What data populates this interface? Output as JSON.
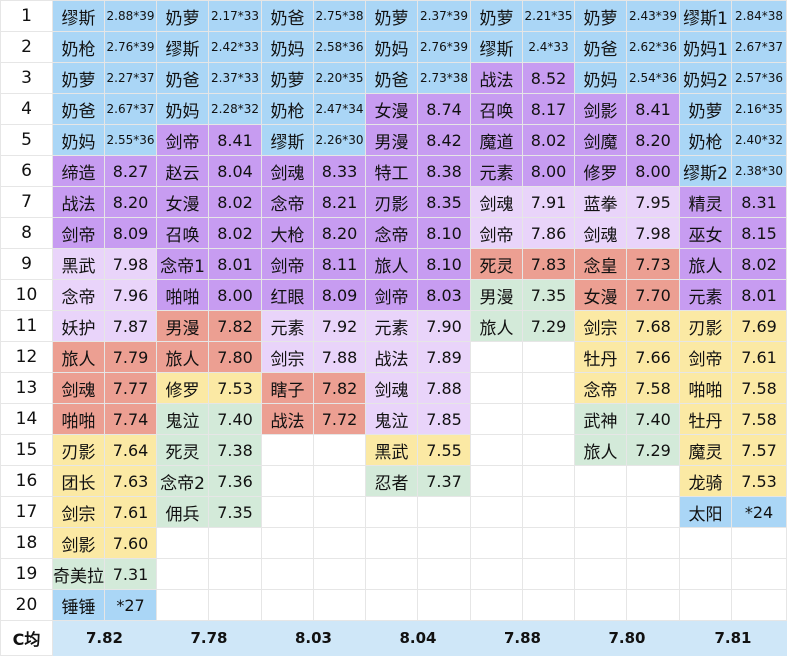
{
  "columns": 7,
  "rows": [
    {
      "num": "1",
      "cells": [
        {
          "name": "缪斯",
          "value": "2.88*39",
          "color": "blue"
        },
        {
          "name": "奶萝",
          "value": "2.17*33",
          "color": "blue"
        },
        {
          "name": "奶爸",
          "value": "2.75*38",
          "color": "blue"
        },
        {
          "name": "奶萝",
          "value": "2.37*39",
          "color": "blue"
        },
        {
          "name": "奶萝",
          "value": "2.21*35",
          "color": "blue"
        },
        {
          "name": "奶萝",
          "value": "2.43*39",
          "color": "blue"
        },
        {
          "name": "缪斯1",
          "value": "2.84*38",
          "color": "blue"
        }
      ]
    },
    {
      "num": "2",
      "cells": [
        {
          "name": "奶枪",
          "value": "2.76*39",
          "color": "blue"
        },
        {
          "name": "缪斯",
          "value": "2.42*33",
          "color": "blue"
        },
        {
          "name": "奶妈",
          "value": "2.58*36",
          "color": "blue"
        },
        {
          "name": "奶妈",
          "value": "2.76*39",
          "color": "blue"
        },
        {
          "name": "缪斯",
          "value": "2.4*33",
          "color": "blue"
        },
        {
          "name": "奶爸",
          "value": "2.62*36",
          "color": "blue"
        },
        {
          "name": "奶妈1",
          "value": "2.67*37",
          "color": "blue"
        }
      ]
    },
    {
      "num": "3",
      "cells": [
        {
          "name": "奶萝",
          "value": "2.27*37",
          "color": "blue"
        },
        {
          "name": "奶爸",
          "value": "2.37*33",
          "color": "blue"
        },
        {
          "name": "奶萝",
          "value": "2.20*35",
          "color": "blue"
        },
        {
          "name": "奶爸",
          "value": "2.73*38",
          "color": "blue"
        },
        {
          "name": "战法",
          "value": "8.52",
          "color": "purple"
        },
        {
          "name": "奶妈",
          "value": "2.54*36",
          "color": "blue"
        },
        {
          "name": "奶妈2",
          "value": "2.57*36",
          "color": "blue"
        }
      ]
    },
    {
      "num": "4",
      "cells": [
        {
          "name": "奶爸",
          "value": "2.67*37",
          "color": "blue"
        },
        {
          "name": "奶妈",
          "value": "2.28*32",
          "color": "blue"
        },
        {
          "name": "奶枪",
          "value": "2.47*34",
          "color": "blue"
        },
        {
          "name": "女漫",
          "value": "8.74",
          "color": "purple"
        },
        {
          "name": "召唤",
          "value": "8.17",
          "color": "purple"
        },
        {
          "name": "剑影",
          "value": "8.41",
          "color": "purple"
        },
        {
          "name": "奶萝",
          "value": "2.16*35",
          "color": "blue"
        }
      ]
    },
    {
      "num": "5",
      "cells": [
        {
          "name": "奶妈",
          "value": "2.55*36",
          "color": "blue"
        },
        {
          "name": "剑帝",
          "value": "8.41",
          "color": "purple"
        },
        {
          "name": "缪斯",
          "value": "2.26*30",
          "color": "blue"
        },
        {
          "name": "男漫",
          "value": "8.42",
          "color": "purple"
        },
        {
          "name": "魔道",
          "value": "8.02",
          "color": "purple"
        },
        {
          "name": "剑魔",
          "value": "8.20",
          "color": "purple"
        },
        {
          "name": "奶枪",
          "value": "2.40*32",
          "color": "blue"
        }
      ]
    },
    {
      "num": "6",
      "cells": [
        {
          "name": "缔造",
          "value": "8.27",
          "color": "purple"
        },
        {
          "name": "赵云",
          "value": "8.04",
          "color": "purple"
        },
        {
          "name": "剑魂",
          "value": "8.33",
          "color": "purple"
        },
        {
          "name": "特工",
          "value": "8.38",
          "color": "purple"
        },
        {
          "name": "元素",
          "value": "8.00",
          "color": "purple"
        },
        {
          "name": "修罗",
          "value": "8.00",
          "color": "purple"
        },
        {
          "name": "缪斯2",
          "value": "2.38*30",
          "color": "blue"
        }
      ]
    },
    {
      "num": "7",
      "cells": [
        {
          "name": "战法",
          "value": "8.20",
          "color": "purple"
        },
        {
          "name": "女漫",
          "value": "8.02",
          "color": "purple"
        },
        {
          "name": "念帝",
          "value": "8.21",
          "color": "purple"
        },
        {
          "name": "刃影",
          "value": "8.35",
          "color": "purple"
        },
        {
          "name": "剑魂",
          "value": "7.91",
          "color": "lav"
        },
        {
          "name": "蓝拳",
          "value": "7.95",
          "color": "lav"
        },
        {
          "name": "精灵",
          "value": "8.31",
          "color": "purple"
        }
      ]
    },
    {
      "num": "8",
      "cells": [
        {
          "name": "剑帝",
          "value": "8.09",
          "color": "purple"
        },
        {
          "name": "召唤",
          "value": "8.02",
          "color": "purple"
        },
        {
          "name": "大枪",
          "value": "8.20",
          "color": "purple"
        },
        {
          "name": "念帝",
          "value": "8.10",
          "color": "purple"
        },
        {
          "name": "剑帝",
          "value": "7.86",
          "color": "lav"
        },
        {
          "name": "剑魂",
          "value": "7.98",
          "color": "lav"
        },
        {
          "name": "巫女",
          "value": "8.15",
          "color": "purple"
        }
      ]
    },
    {
      "num": "9",
      "cells": [
        {
          "name": "黑武",
          "value": "7.98",
          "color": "lav"
        },
        {
          "name": "念帝1",
          "value": "8.01",
          "color": "purple"
        },
        {
          "name": "剑帝",
          "value": "8.11",
          "color": "purple"
        },
        {
          "name": "旅人",
          "value": "8.10",
          "color": "purple"
        },
        {
          "name": "死灵",
          "value": "7.83",
          "color": "red"
        },
        {
          "name": "念皇",
          "value": "7.73",
          "color": "red"
        },
        {
          "name": "旅人",
          "value": "8.02",
          "color": "purple"
        }
      ]
    },
    {
      "num": "10",
      "cells": [
        {
          "name": "念帝",
          "value": "7.96",
          "color": "lav"
        },
        {
          "name": "啪啪",
          "value": "8.00",
          "color": "purple"
        },
        {
          "name": "红眼",
          "value": "8.09",
          "color": "purple"
        },
        {
          "name": "剑帝",
          "value": "8.03",
          "color": "purple"
        },
        {
          "name": "男漫",
          "value": "7.35",
          "color": "green"
        },
        {
          "name": "女漫",
          "value": "7.70",
          "color": "red"
        },
        {
          "name": "元素",
          "value": "8.01",
          "color": "purple"
        }
      ]
    },
    {
      "num": "11",
      "cells": [
        {
          "name": "妖护",
          "value": "7.87",
          "color": "lav"
        },
        {
          "name": "男漫",
          "value": "7.82",
          "color": "red"
        },
        {
          "name": "元素",
          "value": "7.92",
          "color": "lav"
        },
        {
          "name": "元素",
          "value": "7.90",
          "color": "lav"
        },
        {
          "name": "旅人",
          "value": "7.29",
          "color": "green"
        },
        {
          "name": "剑宗",
          "value": "7.68",
          "color": "yellow"
        },
        {
          "name": "刃影",
          "value": "7.69",
          "color": "yellow"
        }
      ]
    },
    {
      "num": "12",
      "cells": [
        {
          "name": "旅人",
          "value": "7.79",
          "color": "red"
        },
        {
          "name": "旅人",
          "value": "7.80",
          "color": "red"
        },
        {
          "name": "剑宗",
          "value": "7.88",
          "color": "lav"
        },
        {
          "name": "战法",
          "value": "7.89",
          "color": "lav"
        },
        {
          "name": "",
          "value": "",
          "color": "none"
        },
        {
          "name": "牡丹",
          "value": "7.66",
          "color": "yellow"
        },
        {
          "name": "剑帝",
          "value": "7.61",
          "color": "yellow"
        }
      ]
    },
    {
      "num": "13",
      "cells": [
        {
          "name": "剑魂",
          "value": "7.77",
          "color": "red"
        },
        {
          "name": "修罗",
          "value": "7.53",
          "color": "yellow"
        },
        {
          "name": "瞎子",
          "value": "7.82",
          "color": "red"
        },
        {
          "name": "剑魂",
          "value": "7.88",
          "color": "lav"
        },
        {
          "name": "",
          "value": "",
          "color": "none"
        },
        {
          "name": "念帝",
          "value": "7.58",
          "color": "yellow"
        },
        {
          "name": "啪啪",
          "value": "7.58",
          "color": "yellow"
        }
      ]
    },
    {
      "num": "14",
      "cells": [
        {
          "name": "啪啪",
          "value": "7.74",
          "color": "red"
        },
        {
          "name": "鬼泣",
          "value": "7.40",
          "color": "green"
        },
        {
          "name": "战法",
          "value": "7.72",
          "color": "red"
        },
        {
          "name": "鬼泣",
          "value": "7.85",
          "color": "lav"
        },
        {
          "name": "",
          "value": "",
          "color": "none"
        },
        {
          "name": "武神",
          "value": "7.40",
          "color": "green"
        },
        {
          "name": "牡丹",
          "value": "7.58",
          "color": "yellow"
        }
      ]
    },
    {
      "num": "15",
      "cells": [
        {
          "name": "刃影",
          "value": "7.64",
          "color": "yellow"
        },
        {
          "name": "死灵",
          "value": "7.38",
          "color": "green"
        },
        {
          "name": "",
          "value": "",
          "color": "none"
        },
        {
          "name": "黑武",
          "value": "7.55",
          "color": "yellow"
        },
        {
          "name": "",
          "value": "",
          "color": "none"
        },
        {
          "name": "旅人",
          "value": "7.29",
          "color": "green"
        },
        {
          "name": "魔灵",
          "value": "7.57",
          "color": "yellow"
        }
      ]
    },
    {
      "num": "16",
      "cells": [
        {
          "name": "团长",
          "value": "7.63",
          "color": "yellow"
        },
        {
          "name": "念帝2",
          "value": "7.36",
          "color": "green"
        },
        {
          "name": "",
          "value": "",
          "color": "none"
        },
        {
          "name": "忍者",
          "value": "7.37",
          "color": "green"
        },
        {
          "name": "",
          "value": "",
          "color": "none"
        },
        {
          "name": "",
          "value": "",
          "color": "none"
        },
        {
          "name": "龙骑",
          "value": "7.53",
          "color": "yellow"
        }
      ]
    },
    {
      "num": "17",
      "cells": [
        {
          "name": "剑宗",
          "value": "7.61",
          "color": "yellow"
        },
        {
          "name": "佣兵",
          "value": "7.35",
          "color": "green"
        },
        {
          "name": "",
          "value": "",
          "color": "none"
        },
        {
          "name": "",
          "value": "",
          "color": "none"
        },
        {
          "name": "",
          "value": "",
          "color": "none"
        },
        {
          "name": "",
          "value": "",
          "color": "none"
        },
        {
          "name": "太阳",
          "value": "*24",
          "color": "blue"
        }
      ]
    },
    {
      "num": "18",
      "cells": [
        {
          "name": "剑影",
          "value": "7.60",
          "color": "yellow"
        },
        {
          "name": "",
          "value": "",
          "color": "none"
        },
        {
          "name": "",
          "value": "",
          "color": "none"
        },
        {
          "name": "",
          "value": "",
          "color": "none"
        },
        {
          "name": "",
          "value": "",
          "color": "none"
        },
        {
          "name": "",
          "value": "",
          "color": "none"
        },
        {
          "name": "",
          "value": "",
          "color": "none"
        }
      ]
    },
    {
      "num": "19",
      "cells": [
        {
          "name": "奇美拉",
          "value": "7.31",
          "color": "green"
        },
        {
          "name": "",
          "value": "",
          "color": "none"
        },
        {
          "name": "",
          "value": "",
          "color": "none"
        },
        {
          "name": "",
          "value": "",
          "color": "none"
        },
        {
          "name": "",
          "value": "",
          "color": "none"
        },
        {
          "name": "",
          "value": "",
          "color": "none"
        },
        {
          "name": "",
          "value": "",
          "color": "none"
        }
      ]
    },
    {
      "num": "20",
      "cells": [
        {
          "name": "锤锤",
          "value": "*27",
          "color": "blue"
        },
        {
          "name": "",
          "value": "",
          "color": "none"
        },
        {
          "name": "",
          "value": "",
          "color": "none"
        },
        {
          "name": "",
          "value": "",
          "color": "none"
        },
        {
          "name": "",
          "value": "",
          "color": "none"
        },
        {
          "name": "",
          "value": "",
          "color": "none"
        },
        {
          "name": "",
          "value": "",
          "color": "none"
        }
      ]
    }
  ],
  "average": {
    "label": "C均",
    "values": [
      "7.82",
      "7.78",
      "8.03",
      "8.04",
      "7.88",
      "7.80",
      "7.81"
    ]
  }
}
